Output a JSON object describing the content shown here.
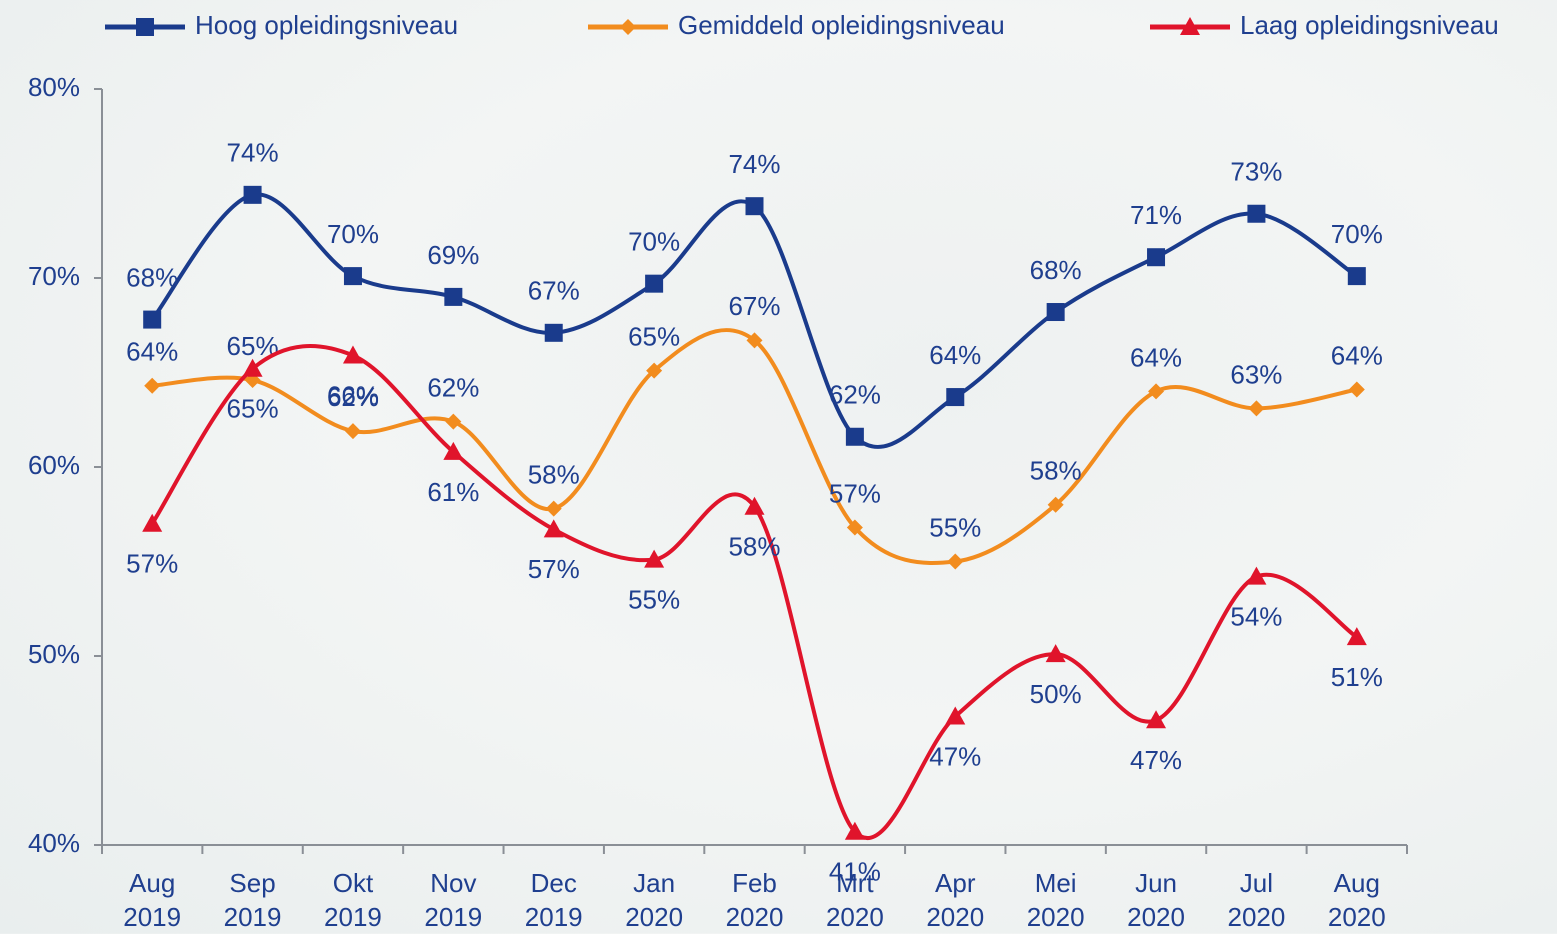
{
  "chart_data": {
    "type": "line",
    "categories": [
      "Aug 2019",
      "Sep 2019",
      "Okt 2019",
      "Nov 2019",
      "Dec 2019",
      "Jan 2020",
      "Feb 2020",
      "Mrt 2020",
      "Apr 2020",
      "Mei 2020",
      "Jun 2020",
      "Jul 2020",
      "Aug 2020"
    ],
    "series": [
      {
        "name": "Hoog opleidingsniveau",
        "color": "#1a3b8c",
        "marker": "square",
        "values": [
          67.8,
          74.4,
          70.1,
          69.0,
          67.1,
          69.7,
          73.8,
          61.6,
          63.7,
          68.2,
          71.1,
          73.4,
          70.1
        ],
        "value_labels": [
          "68%",
          "74%",
          "70%",
          "69%",
          "67%",
          "70%",
          "74%",
          "62%",
          "64%",
          "68%",
          "71%",
          "73%",
          "70%"
        ]
      },
      {
        "name": "Gemiddeld opleidingsniveau",
        "color": "#f28c1e",
        "marker": "diamond",
        "values": [
          64.3,
          64.6,
          61.9,
          62.4,
          57.8,
          65.1,
          66.7,
          56.8,
          55.0,
          58.0,
          64.0,
          63.1,
          64.1
        ],
        "value_labels": [
          "64%",
          "65%",
          "62%",
          "62%",
          "58%",
          "65%",
          "67%",
          "57%",
          "55%",
          "58%",
          "64%",
          "63%",
          "64%"
        ]
      },
      {
        "name": "Laag opleidingsniveau",
        "color": "#e0142b",
        "marker": "triangle",
        "values": [
          57.0,
          65.2,
          65.9,
          60.8,
          56.7,
          55.1,
          57.9,
          40.7,
          46.8,
          50.1,
          46.6,
          54.2,
          51.0
        ],
        "value_labels": [
          "57%",
          "65%",
          "66%",
          "61%",
          "57%",
          "55%",
          "58%",
          "41%",
          "47%",
          "50%",
          "47%",
          "54%",
          "51%"
        ]
      }
    ],
    "ylim": [
      40,
      80
    ],
    "yticks": [
      {
        "value": 40,
        "label": "40%"
      },
      {
        "value": 50,
        "label": "50%"
      },
      {
        "value": 60,
        "label": "60%"
      },
      {
        "value": 70,
        "label": "70%"
      },
      {
        "value": 80,
        "label": "80%"
      }
    ],
    "legend": "top",
    "smooth": true
  }
}
